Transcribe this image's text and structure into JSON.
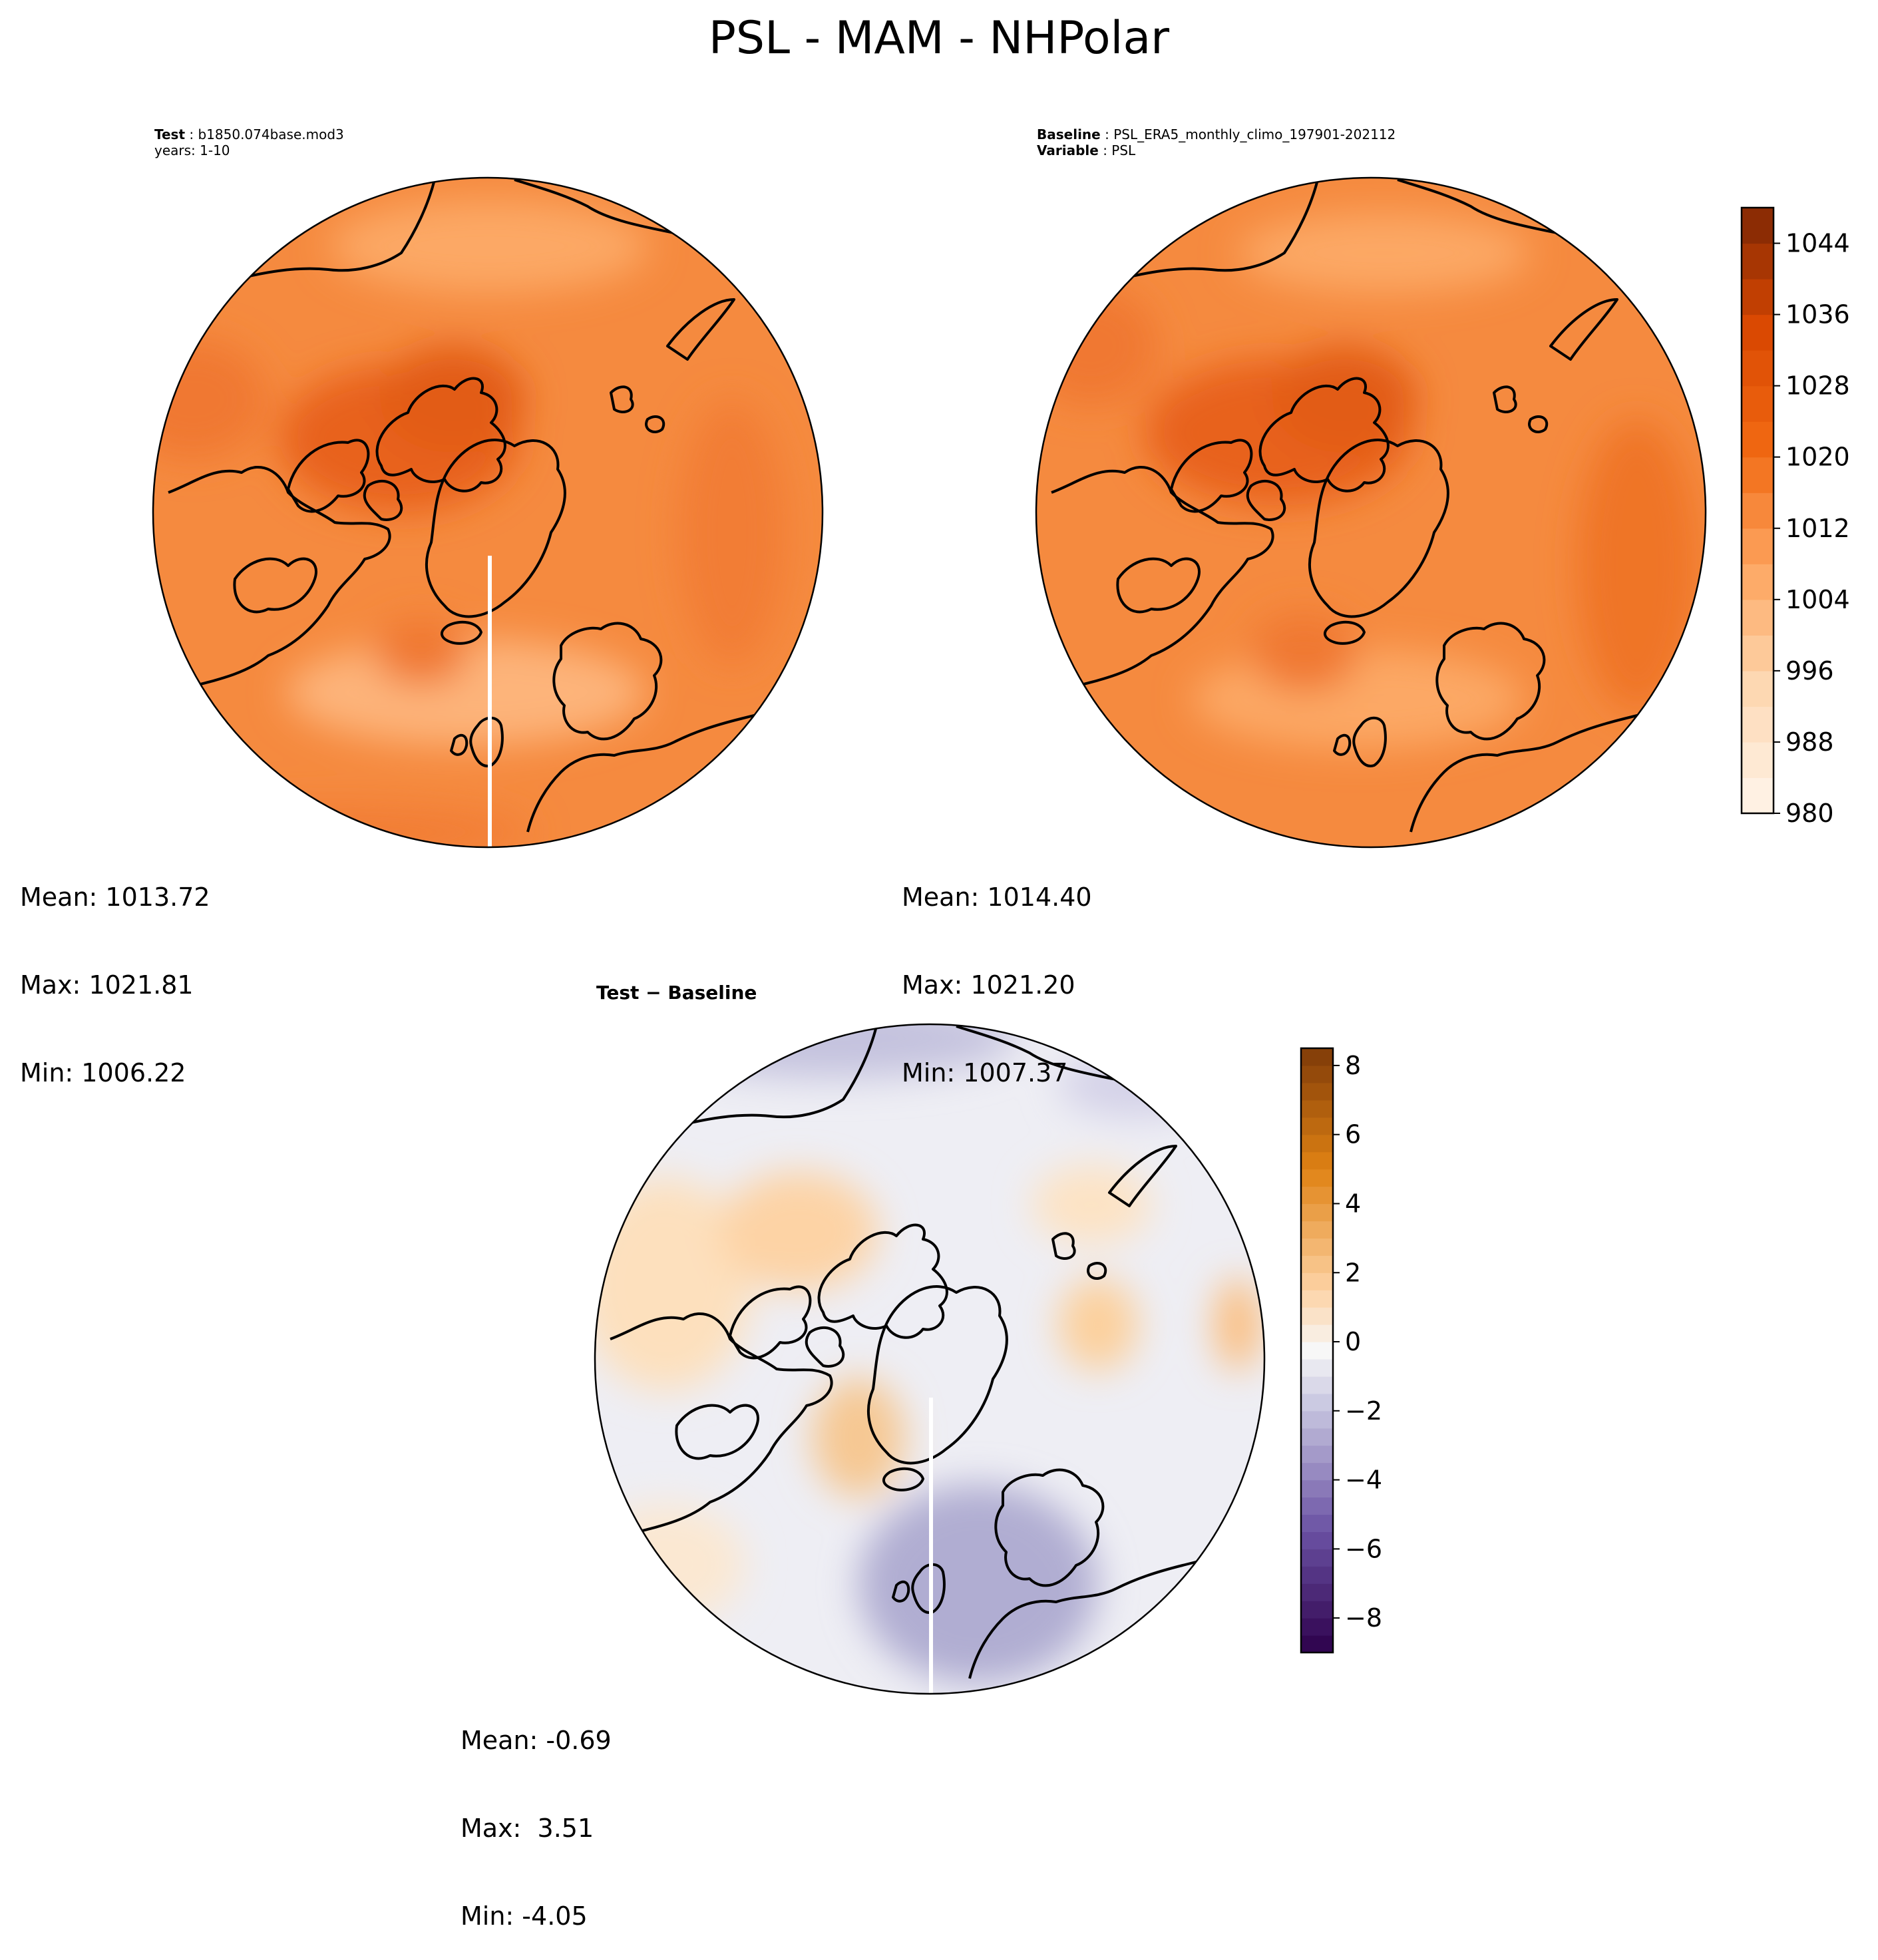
{
  "figure_title": "PSL - MAM - NHPolar",
  "panels": {
    "test": {
      "header_label": "Test",
      "header_value": "b1850.074base.mod3",
      "header_line2": "years: 1-10",
      "stats": {
        "mean": "Mean: 1013.72",
        "max": "Max: 1021.81",
        "min": "Min: 1006.22"
      }
    },
    "baseline": {
      "header_label": "Baseline",
      "header_value": "PSL_ERA5_monthly_climo_197901-202112",
      "header_label2": "Variable",
      "header_value2": "PSL",
      "stats": {
        "mean": "Mean: 1014.40",
        "max": "Max: 1021.20",
        "min": "Min: 1007.37"
      }
    },
    "diff": {
      "title": "Test − Baseline",
      "stats": {
        "mean": "Mean: -0.69",
        "max": "Max:  3.51",
        "min": "Min: -4.05"
      }
    }
  },
  "colors": {
    "oranges_low": "#fff5eb",
    "oranges_high": "#7f2704",
    "diff_neg": "#3f007d",
    "diff_pos": "#7f3b08",
    "coastline": "#000000"
  },
  "chart_data": [
    {
      "type": "heatmap",
      "panel": "test",
      "projection": "north-polar-stereographic",
      "variable": "PSL",
      "levels": [
        980,
        1048
      ],
      "colorbar_ticks": [
        "1044",
        "1036",
        "1028",
        "1020",
        "1012",
        "1004",
        "996",
        "988",
        "980"
      ],
      "mean": 1013.72,
      "max": 1021.81,
      "min": 1006.22
    },
    {
      "type": "heatmap",
      "panel": "baseline",
      "projection": "north-polar-stereographic",
      "variable": "PSL",
      "levels": [
        980,
        1048
      ],
      "colorbar_ticks": [
        "1044",
        "1036",
        "1028",
        "1020",
        "1012",
        "1004",
        "996",
        "988",
        "980"
      ],
      "mean": 1014.4,
      "max": 1021.2,
      "min": 1007.37
    },
    {
      "type": "heatmap",
      "panel": "difference",
      "projection": "north-polar-stereographic",
      "levels": [
        -9,
        8.5
      ],
      "colorbar_ticks": [
        "8",
        "6",
        "4",
        "2",
        "0",
        "−2",
        "−4",
        "−6",
        "−8"
      ],
      "mean": -0.69,
      "max": 3.51,
      "min": -4.05
    }
  ]
}
